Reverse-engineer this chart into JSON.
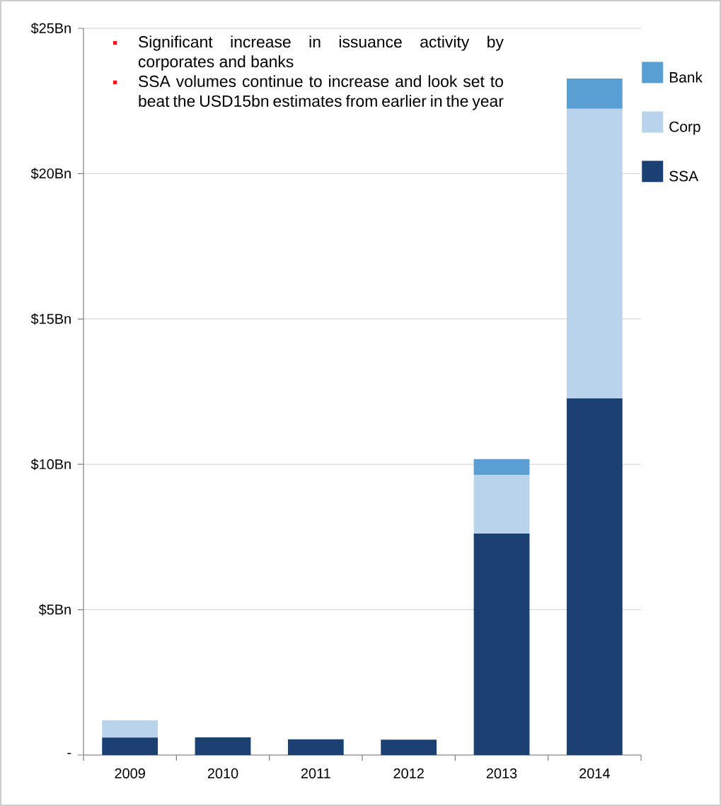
{
  "chart_data": {
    "type": "bar",
    "stacked": true,
    "categories": [
      "2009",
      "2010",
      "2011",
      "2012",
      "2013",
      "2014"
    ],
    "series": [
      {
        "name": "SSA",
        "color": "#1b4173",
        "values": [
          0.6,
          0.61,
          0.54,
          0.53,
          7.62,
          12.27
        ]
      },
      {
        "name": "Corp",
        "color": "#b9d3ec",
        "values": [
          0.59,
          null,
          null,
          null,
          2.02,
          9.96
        ]
      },
      {
        "name": "Bank",
        "color": "#5a9fd4",
        "values": [
          null,
          null,
          null,
          null,
          0.54,
          1.04
        ]
      }
    ],
    "ylim": [
      0,
      25
    ],
    "yticks": [
      {
        "value": 0,
        "label": "-"
      },
      {
        "value": 5,
        "label": "$5Bn"
      },
      {
        "value": 10,
        "label": "$10Bn"
      },
      {
        "value": 15,
        "label": "$15Bn"
      },
      {
        "value": 20,
        "label": "$20Bn"
      },
      {
        "value": 25,
        "label": "$25Bn"
      }
    ],
    "grid": "y",
    "legend": "top right",
    "annotations": [
      "Significant increase in issuance activity by corporates and banks",
      "SSA volumes continue to increase and look set to beat the USD15bn estimates from earlier in the year"
    ]
  }
}
